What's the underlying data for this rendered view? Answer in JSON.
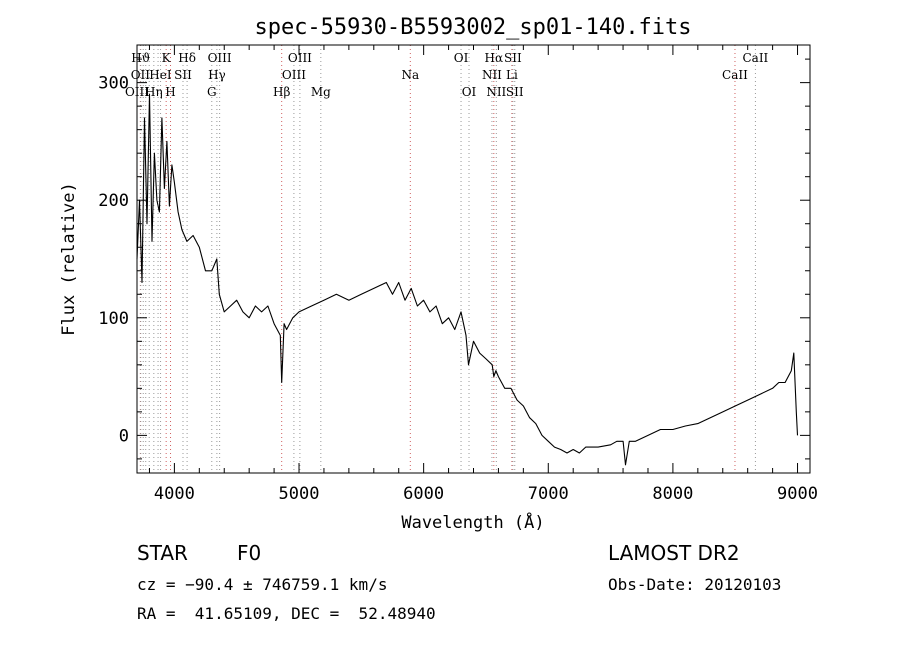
{
  "chart_data": {
    "type": "line",
    "title": "spec-55930-B5593002_sp01-140.fits",
    "xlabel": "Wavelength (Å)",
    "ylabel": "Flux (relative)",
    "xlim": [
      3700,
      9100
    ],
    "ylim": [
      -32,
      332
    ],
    "x_ticks": [
      4000,
      5000,
      6000,
      7000,
      8000,
      9000
    ],
    "y_ticks": [
      0,
      100,
      200,
      300
    ],
    "grid": false,
    "series": [
      {
        "x": [
          3700,
          3720,
          3740,
          3760,
          3780,
          3800,
          3820,
          3840,
          3860,
          3880,
          3900,
          3920,
          3940,
          3960,
          3980,
          4000,
          4030,
          4060,
          4100,
          4150,
          4200,
          4250,
          4300,
          4340,
          4360,
          4400,
          4450,
          4500,
          4550,
          4600,
          4650,
          4700,
          4750,
          4800,
          4850,
          4861,
          4880,
          4900,
          4950,
          5000,
          5100,
          5200,
          5300,
          5400,
          5500,
          5600,
          5700,
          5750,
          5800,
          5850,
          5900,
          5950,
          6000,
          6050,
          6100,
          6150,
          6200,
          6250,
          6300,
          6340,
          6360,
          6400,
          6450,
          6500,
          6550,
          6563,
          6580,
          6600,
          6650,
          6700,
          6750,
          6800,
          6850,
          6900,
          6950,
          7000,
          7050,
          7100,
          7150,
          7200,
          7250,
          7300,
          7400,
          7500,
          7550,
          7600,
          7620,
          7650,
          7700,
          7800,
          7900,
          8000,
          8100,
          8200,
          8300,
          8400,
          8500,
          8600,
          8700,
          8800,
          8850,
          8900,
          8950,
          8970,
          8990,
          9000
        ],
        "y": [
          150,
          200,
          130,
          270,
          180,
          290,
          165,
          240,
          200,
          190,
          270,
          210,
          250,
          195,
          230,
          215,
          190,
          175,
          165,
          170,
          160,
          140,
          140,
          150,
          120,
          105,
          110,
          115,
          105,
          100,
          110,
          105,
          110,
          95,
          85,
          45,
          95,
          90,
          100,
          105,
          110,
          115,
          120,
          115,
          120,
          125,
          130,
          120,
          130,
          115,
          125,
          110,
          115,
          105,
          110,
          95,
          100,
          90,
          105,
          85,
          60,
          80,
          70,
          65,
          60,
          50,
          55,
          50,
          40,
          40,
          30,
          25,
          15,
          10,
          0,
          -5,
          -10,
          -12,
          -15,
          -12,
          -15,
          -10,
          -10,
          -8,
          -5,
          -5,
          -25,
          -5,
          -5,
          0,
          5,
          5,
          8,
          10,
          15,
          20,
          25,
          30,
          35,
          40,
          45,
          45,
          55,
          70,
          20,
          0
        ]
      }
    ],
    "line_labels": [
      {
        "label": "Hϑ",
        "x": 3730,
        "row": 0,
        "color": "#000000"
      },
      {
        "label": "OII",
        "x": 3727,
        "row": 1,
        "color": "#000000"
      },
      {
        "label": "OIII",
        "x": 3700,
        "row": 2,
        "color": "#000000"
      },
      {
        "label": "K",
        "x": 3934,
        "row": 0,
        "color": "#000000"
      },
      {
        "label": "HeI",
        "x": 3888,
        "row": 1,
        "color": "#000000"
      },
      {
        "label": "Hη",
        "x": 3835,
        "row": 2,
        "color": "#000000"
      },
      {
        "label": "SII",
        "x": 4069,
        "row": 1,
        "color": "#000000"
      },
      {
        "label": "H",
        "x": 3969,
        "row": 2,
        "color": "#000000"
      },
      {
        "label": "Hδ",
        "x": 4102,
        "row": 0,
        "color": "#000000"
      },
      {
        "label": "OIII",
        "x": 4363,
        "row": 0,
        "color": "#000000"
      },
      {
        "label": "Hγ",
        "x": 4341,
        "row": 1,
        "color": "#000000"
      },
      {
        "label": "G",
        "x": 4300,
        "row": 2,
        "color": "#000000"
      },
      {
        "label": "Hβ",
        "x": 4861,
        "row": 2,
        "color": "#000000"
      },
      {
        "label": "OIII",
        "x": 5007,
        "row": 0,
        "color": "#000000"
      },
      {
        "label": "OIII",
        "x": 4959,
        "row": 1,
        "color": "#000000"
      },
      {
        "label": "Mg",
        "x": 5175,
        "row": 2,
        "color": "#000000"
      },
      {
        "label": "Na",
        "x": 5893,
        "row": 1,
        "color": "#000000"
      },
      {
        "label": "OI",
        "x": 6300,
        "row": 0,
        "color": "#000000"
      },
      {
        "label": "OI",
        "x": 6364,
        "row": 2,
        "color": "#000000"
      },
      {
        "label": "Hα",
        "x": 6563,
        "row": 0,
        "color": "#000000"
      },
      {
        "label": "NII",
        "x": 6548,
        "row": 1,
        "color": "#000000"
      },
      {
        "label": "NII",
        "x": 6583,
        "row": 2,
        "color": "#000000"
      },
      {
        "label": "SII",
        "x": 6716,
        "row": 0,
        "color": "#000000"
      },
      {
        "label": "Li",
        "x": 6708,
        "row": 1,
        "color": "#000000"
      },
      {
        "label": "SII",
        "x": 6731,
        "row": 2,
        "color": "#000000"
      },
      {
        "label": "CaII",
        "x": 8662,
        "row": 0,
        "color": "#000000"
      },
      {
        "label": "CaII",
        "x": 8498,
        "row": 1,
        "color": "#000000"
      }
    ],
    "line_markers": [
      {
        "x": 3700,
        "color": "#999999"
      },
      {
        "x": 3727,
        "color": "#d06060"
      },
      {
        "x": 3730,
        "color": "#999999"
      },
      {
        "x": 3750,
        "color": "#999999"
      },
      {
        "x": 3770,
        "color": "#999999"
      },
      {
        "x": 3798,
        "color": "#999999"
      },
      {
        "x": 3835,
        "color": "#999999"
      },
      {
        "x": 3869,
        "color": "#999999"
      },
      {
        "x": 3889,
        "color": "#999999"
      },
      {
        "x": 3934,
        "color": "#d06060"
      },
      {
        "x": 3969,
        "color": "#d06060"
      },
      {
        "x": 4069,
        "color": "#999999"
      },
      {
        "x": 4102,
        "color": "#999999"
      },
      {
        "x": 4300,
        "color": "#999999"
      },
      {
        "x": 4341,
        "color": "#999999"
      },
      {
        "x": 4363,
        "color": "#999999"
      },
      {
        "x": 4861,
        "color": "#d06060"
      },
      {
        "x": 4959,
        "color": "#999999"
      },
      {
        "x": 5007,
        "color": "#999999"
      },
      {
        "x": 5175,
        "color": "#999999"
      },
      {
        "x": 5893,
        "color": "#d06060"
      },
      {
        "x": 6300,
        "color": "#999999"
      },
      {
        "x": 6364,
        "color": "#999999"
      },
      {
        "x": 6548,
        "color": "#999999"
      },
      {
        "x": 6563,
        "color": "#d06060"
      },
      {
        "x": 6583,
        "color": "#999999"
      },
      {
        "x": 6708,
        "color": "#d06060"
      },
      {
        "x": 6716,
        "color": "#999999"
      },
      {
        "x": 6731,
        "color": "#999999"
      },
      {
        "x": 8498,
        "color": "#d06060"
      },
      {
        "x": 8662,
        "color": "#999999"
      }
    ]
  },
  "info": {
    "object_class": "STAR",
    "subclass": "F0",
    "survey": "LAMOST DR2",
    "cz": "cz = −90.4 ± 746759.1 km/s",
    "obs_date": "Obs-Date: 20120103",
    "coords": "RA =  41.65109, DEC =  52.48940"
  }
}
